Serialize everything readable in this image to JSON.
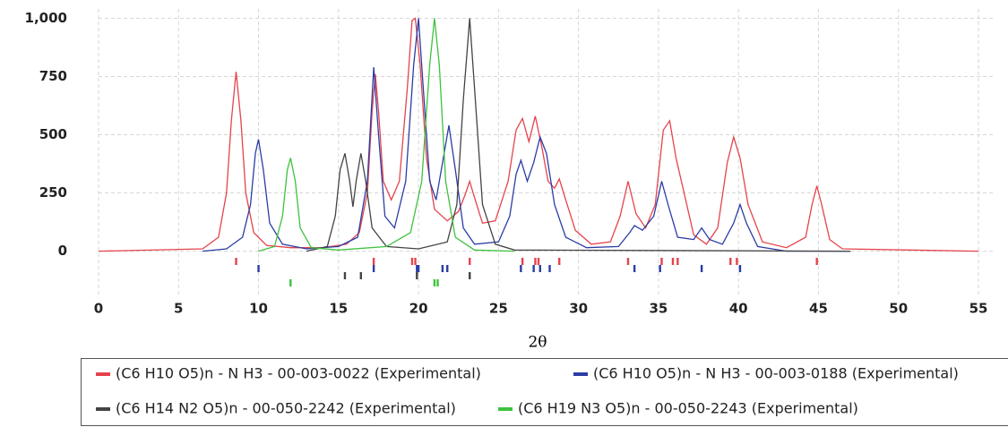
{
  "chart_data": {
    "type": "line",
    "x_label": "2θ",
    "xlim": [
      0,
      55
    ],
    "ylim": [
      -190,
      1040
    ],
    "xticks": [
      0,
      5,
      10,
      15,
      20,
      25,
      30,
      35,
      40,
      45,
      50,
      55
    ],
    "yticks": [
      0,
      250,
      500,
      750,
      {
        "value": 1000,
        "label": "1,000"
      }
    ],
    "grid": true,
    "series": [
      {
        "name": "(C6 H10 O5)n - N H3 - 00-003-0022 (Experimental)",
        "color": "#e5434c",
        "x": [
          0,
          6.5,
          7.5,
          8,
          8.3,
          8.6,
          8.9,
          9.2,
          9.7,
          10.5,
          12,
          14,
          15.5,
          16.3,
          16.8,
          17.1,
          17.3,
          17.5,
          17.8,
          18.3,
          18.8,
          19.3,
          19.6,
          19.8,
          20.1,
          20.5,
          21,
          21.8,
          22.5,
          22.9,
          23.2,
          23.5,
          24,
          24.8,
          25.6,
          26.1,
          26.5,
          26.9,
          27.3,
          27.7,
          28.1,
          28.5,
          28.8,
          29.2,
          29.8,
          30.8,
          32,
          32.6,
          33.1,
          33.6,
          34.2,
          34.8,
          35.3,
          35.7,
          36.1,
          36.6,
          37.2,
          38,
          38.7,
          39.3,
          39.7,
          40.1,
          40.6,
          41.5,
          43,
          44.2,
          44.6,
          44.9,
          45.2,
          45.7,
          46.5,
          55
        ],
        "values": [
          0,
          10,
          60,
          250,
          560,
          770,
          560,
          250,
          80,
          25,
          15,
          15,
          30,
          80,
          250,
          600,
          760,
          600,
          300,
          220,
          300,
          700,
          990,
          1000,
          800,
          400,
          180,
          130,
          170,
          240,
          300,
          230,
          120,
          130,
          300,
          520,
          570,
          470,
          580,
          450,
          300,
          270,
          310,
          220,
          90,
          30,
          40,
          150,
          300,
          160,
          100,
          200,
          520,
          560,
          400,
          250,
          70,
          30,
          100,
          380,
          490,
          400,
          200,
          40,
          15,
          60,
          200,
          280,
          200,
          50,
          10,
          0
        ],
        "sticks": [
          8.6,
          17.2,
          19.6,
          19.8,
          23.2,
          26.5,
          27.3,
          27.5,
          28.8,
          33.1,
          35.2,
          35.9,
          36.2,
          39.5,
          39.9,
          44.9
        ]
      },
      {
        "name": "(C6 H10 O5)n - N H3 - 00-003-0188 (Experimental)",
        "color": "#2a3da6",
        "x": [
          6.5,
          8,
          9,
          9.5,
          9.8,
          10,
          10.3,
          10.7,
          11.5,
          13,
          15,
          16.2,
          16.8,
          17.2,
          17.5,
          17.9,
          18.5,
          19.2,
          19.7,
          20,
          20.3,
          20.7,
          21.1,
          21.5,
          21.9,
          22.3,
          22.8,
          23.5,
          25,
          25.7,
          26.1,
          26.4,
          26.8,
          27.2,
          27.6,
          28,
          28.5,
          29.2,
          30.5,
          32.5,
          33.2,
          33.5,
          34,
          34.7,
          35.2,
          35.6,
          36.2,
          37.2,
          37.7,
          38.2,
          39,
          39.7,
          40.1,
          40.5,
          41.2,
          43,
          47
        ],
        "values": [
          0,
          10,
          60,
          200,
          420,
          480,
          350,
          120,
          30,
          10,
          20,
          60,
          300,
          790,
          500,
          150,
          100,
          300,
          800,
          1000,
          700,
          300,
          220,
          380,
          540,
          350,
          100,
          30,
          40,
          150,
          330,
          390,
          300,
          380,
          490,
          420,
          200,
          60,
          15,
          20,
          80,
          110,
          90,
          150,
          300,
          200,
          60,
          50,
          100,
          50,
          30,
          120,
          200,
          120,
          20,
          0,
          0
        ],
        "sticks": [
          10,
          17.2,
          19.9,
          20.0,
          21.5,
          21.8,
          26.4,
          27.2,
          27.6,
          28.2,
          33.5,
          35.1,
          37.7,
          40.1
        ]
      },
      {
        "name": "(C6 H14 N2 O5)n - 00-050-2242 (Experimental)",
        "color": "#444444",
        "x": [
          13,
          14.3,
          14.8,
          15.1,
          15.4,
          15.7,
          15.9,
          16.1,
          16.4,
          16.7,
          17.1,
          18,
          20,
          21.8,
          22.4,
          22.8,
          23.2,
          23.6,
          24,
          24.8,
          26,
          47
        ],
        "values": [
          0,
          20,
          150,
          350,
          420,
          300,
          190,
          300,
          420,
          300,
          100,
          20,
          10,
          40,
          200,
          650,
          1000,
          600,
          200,
          30,
          5,
          0
        ],
        "sticks": [
          15.4,
          16.4,
          19.9,
          23.2
        ]
      },
      {
        "name": "(C6 H19 N3 O5)n - 00-050-2243 (Experimental)",
        "color": "#3ec23e",
        "x": [
          10,
          11,
          11.5,
          11.8,
          12,
          12.3,
          12.6,
          13.3,
          15,
          18,
          19.5,
          20.2,
          20.7,
          21,
          21.3,
          21.7,
          22.3,
          23.5,
          26
        ],
        "values": [
          0,
          20,
          150,
          350,
          400,
          300,
          100,
          15,
          5,
          20,
          80,
          300,
          800,
          1000,
          800,
          300,
          60,
          5,
          0
        ],
        "sticks": [
          12,
          21.0,
          21.2
        ]
      }
    ]
  }
}
